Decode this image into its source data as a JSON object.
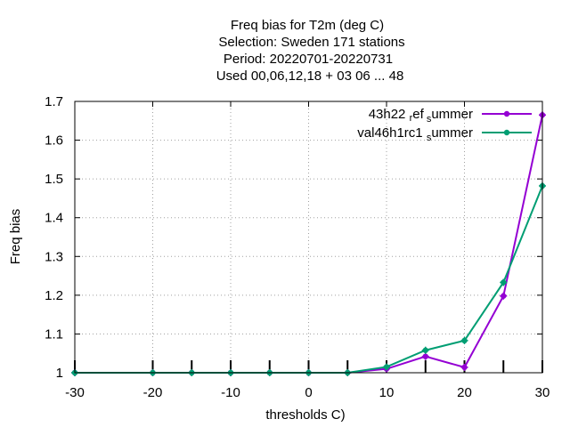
{
  "chart_data": {
    "type": "line",
    "title_lines": [
      "Freq bias  for T2m (deg C)",
      "Selection: Sweden    171 stations",
      "Period: 20220701-20220731",
      "Used  00,06,12,18  + 03 06 ... 48"
    ],
    "xlabel": "thresholds C)",
    "ylabel": "Freq bias",
    "xlim": [
      -30,
      30
    ],
    "ylim": [
      1,
      1.7
    ],
    "xticks": [
      -30,
      -20,
      -10,
      0,
      10,
      20,
      30
    ],
    "yticks": [
      1,
      1.1,
      1.2,
      1.3,
      1.4,
      1.5,
      1.6,
      1.7
    ],
    "ytick_labels": [
      "1",
      "1.1",
      "1.2",
      "1.3",
      "1.4",
      "1.5",
      "1.6",
      "1.7"
    ],
    "grid": true,
    "legend_position": "top-right",
    "x": [
      -30,
      -20,
      -15,
      -10,
      -5,
      0,
      5,
      10,
      15,
      20,
      25,
      30
    ],
    "series": [
      {
        "name": "43h22_ref_summer",
        "legend_parts": [
          "43h22",
          "ref",
          "s",
          "ummer"
        ],
        "color": "#9400d3",
        "values": [
          1.0,
          1.0,
          1.0,
          1.0,
          1.0,
          1.0,
          1.0,
          1.01,
          1.042,
          1.014,
          1.198,
          1.665
        ]
      },
      {
        "name": "val46h1rc1_summer",
        "legend_parts": [
          "val46h1rc1",
          "",
          "s",
          "ummer"
        ],
        "color": "#009e73",
        "values": [
          1.0,
          1.0,
          1.0,
          1.0,
          1.0,
          1.0,
          1.0,
          1.015,
          1.058,
          1.083,
          1.233,
          1.482
        ]
      }
    ]
  }
}
